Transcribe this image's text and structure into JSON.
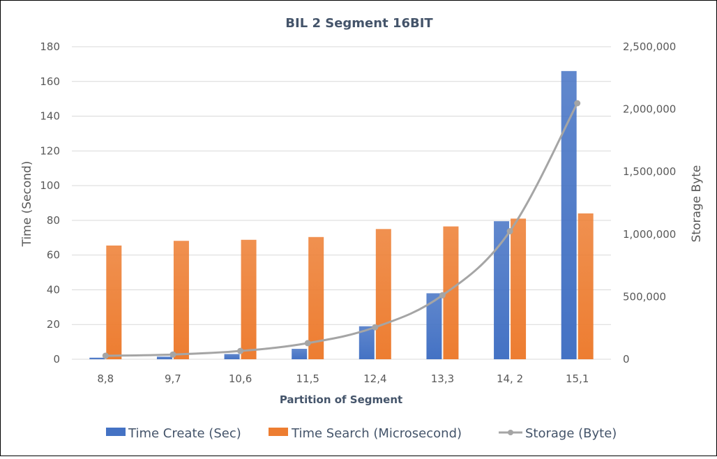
{
  "chart_data": {
    "type": "bar",
    "title": "BIL 2 Segment 16BIT",
    "xlabel": "Partition of Segment",
    "ylabel": "Time (Second)",
    "y2label": "Storage Byte",
    "categories": [
      "8,8",
      "9,7",
      "10,6",
      "11,5",
      "12,4",
      "13,3",
      "14, 2",
      "15,1"
    ],
    "ylim": [
      0,
      180
    ],
    "yticks": [
      "0",
      "20",
      "40",
      "60",
      "80",
      "100",
      "120",
      "140",
      "160",
      "180"
    ],
    "y2lim": [
      0,
      2500000
    ],
    "y2ticks": [
      "0",
      "500,000",
      "1,000,000",
      "1,500,000",
      "2,000,000",
      "2,500,000"
    ],
    "grid": true,
    "legend_position": "bottom",
    "series": [
      {
        "name": "Time Create (Sec)",
        "kind": "bar",
        "axis": "left",
        "color": "#4472c4",
        "values": [
          0.9,
          1.5,
          3,
          6,
          19,
          38,
          79.5,
          166
        ]
      },
      {
        "name": "Time Search (Microsecond)",
        "kind": "bar",
        "axis": "left",
        "color": "#ed7d31",
        "values": [
          65.5,
          68.2,
          68.8,
          70.4,
          75,
          76.5,
          81,
          84
        ]
      },
      {
        "name": "Storage (Byte)",
        "kind": "line",
        "axis": "right",
        "color": "#a5a5a5",
        "values": [
          28000,
          38000,
          66000,
          129000,
          256000,
          512000,
          1024000,
          2048000
        ]
      }
    ]
  }
}
